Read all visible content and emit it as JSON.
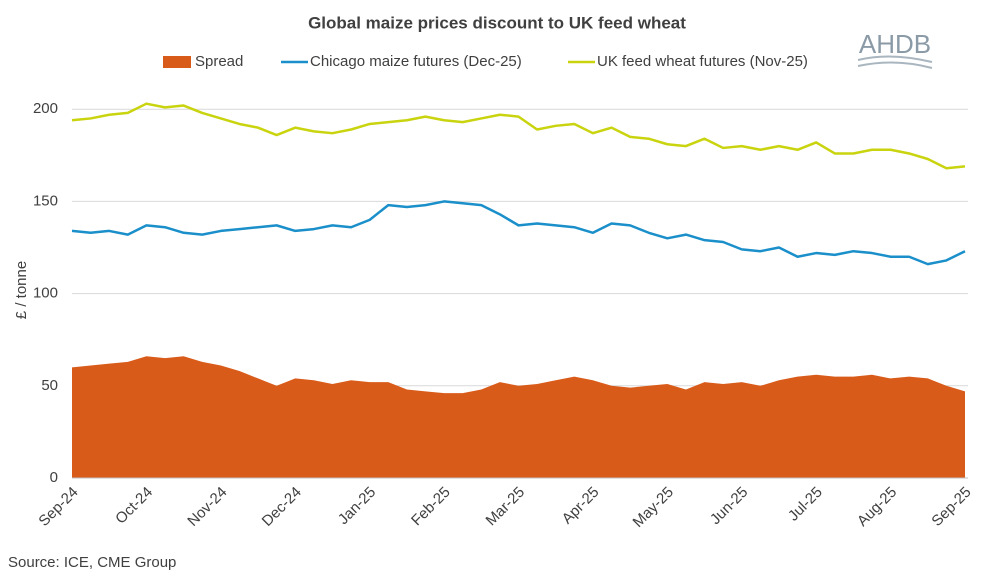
{
  "chart_data": {
    "type": "line",
    "title": "Global maize prices discount to UK feed wheat",
    "logo": "AHDB",
    "source": "Source: ICE, CME Group",
    "y_label": "£ / tonne",
    "categories": [
      "Sep-24",
      null,
      null,
      null,
      "Oct-24",
      null,
      null,
      null,
      "Nov-24",
      null,
      null,
      null,
      "Dec-24",
      null,
      null,
      null,
      "Jan-25",
      null,
      null,
      null,
      "Feb-25",
      null,
      null,
      null,
      "Mar-25",
      null,
      null,
      null,
      "Apr-25",
      null,
      null,
      null,
      "May-25",
      null,
      null,
      null,
      "Jun-25",
      null,
      null,
      null,
      "Jul-25",
      null,
      null,
      null,
      "Aug-25",
      null,
      null,
      null,
      "Sep-25"
    ],
    "series": [
      {
        "name": "Spread",
        "type": "area",
        "color": "#d95b1a",
        "values": [
          60,
          61,
          62,
          63,
          66,
          65,
          66,
          63,
          61,
          58,
          54,
          50,
          54,
          53,
          51,
          53,
          52,
          52,
          48,
          47,
          46,
          46,
          48,
          52,
          50,
          51,
          53,
          55,
          53,
          50,
          49,
          50,
          51,
          48,
          52,
          51,
          52,
          50,
          53,
          55,
          56,
          55,
          55,
          56,
          54,
          55,
          54,
          50,
          47
        ]
      },
      {
        "name": "Chicago maize futures (Dec-25)",
        "type": "line",
        "color": "#1a8fca",
        "values": [
          134,
          133,
          134,
          132,
          137,
          136,
          133,
          132,
          134,
          135,
          136,
          137,
          134,
          135,
          137,
          136,
          140,
          148,
          147,
          148,
          150,
          149,
          148,
          143,
          137,
          138,
          137,
          136,
          133,
          138,
          137,
          133,
          130,
          132,
          129,
          128,
          124,
          123,
          125,
          120,
          122,
          121,
          123,
          122,
          120,
          120,
          116,
          118,
          123
        ]
      },
      {
        "name": "UK feed wheat futures (Nov-25)",
        "type": "line",
        "color": "#c9d40f",
        "values": [
          194,
          195,
          197,
          198,
          203,
          201,
          202,
          198,
          195,
          192,
          190,
          186,
          190,
          188,
          187,
          189,
          192,
          193,
          194,
          196,
          194,
          193,
          195,
          197,
          196,
          189,
          191,
          192,
          187,
          190,
          185,
          184,
          181,
          180,
          184,
          179,
          180,
          178,
          180,
          178,
          182,
          176,
          176,
          178,
          178,
          176,
          173,
          168,
          169
        ]
      }
    ],
    "ylim": [
      0,
      205
    ],
    "yticks": [
      0,
      50,
      100,
      150,
      200
    ],
    "grid": true,
    "legend": "top"
  }
}
